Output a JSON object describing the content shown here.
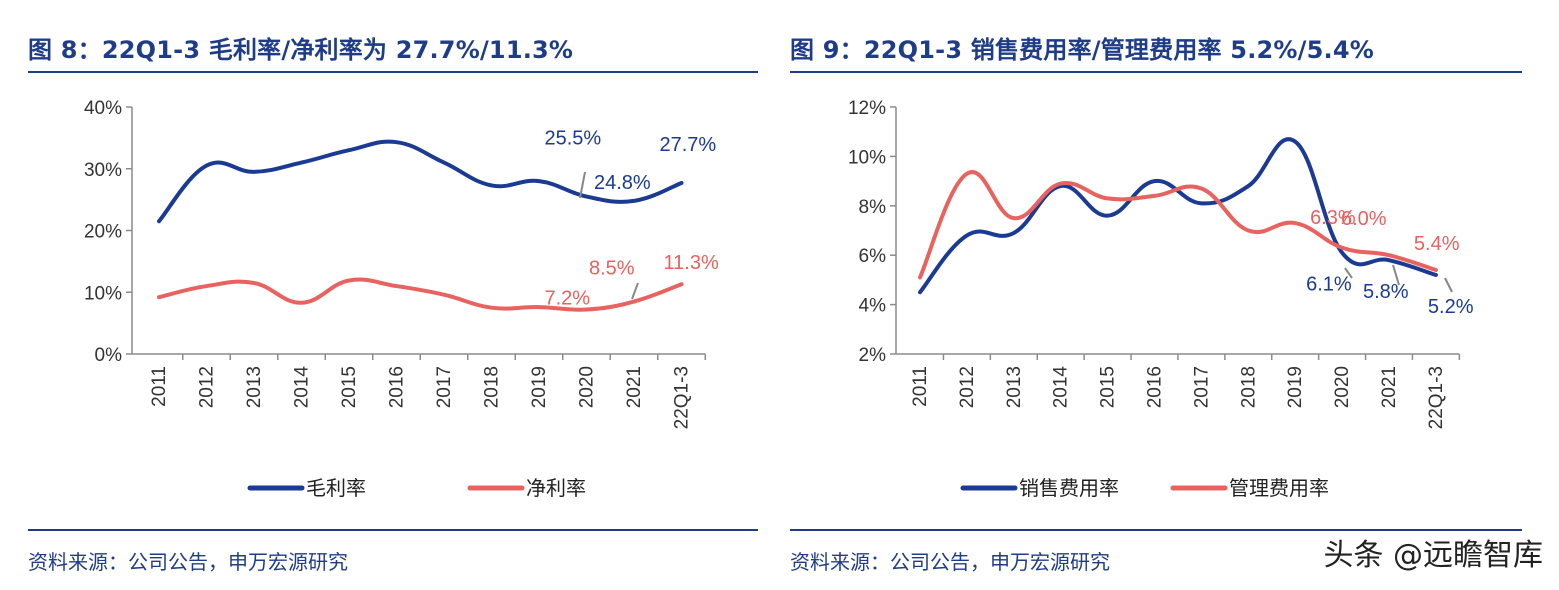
{
  "colors": {
    "navy": "#1b3a93",
    "salmon": "#e8625f",
    "axis": "#8c8c8c",
    "leader": "#888888"
  },
  "watermark": "头条 @远瞻智库",
  "panels": [
    {
      "id": "left",
      "title": "图 8：22Q1-3 毛利率/净利率为 27.7%/11.3%",
      "source": "资料来源：公司公告，申万宏源研究"
    },
    {
      "id": "right",
      "title": "图 9：22Q1-3 销售费用率/管理费用率 5.2%/5.4%",
      "source": "资料来源：公司公告，申万宏源研究"
    }
  ],
  "chart_data": [
    {
      "type": "line",
      "title": "",
      "categories": [
        "2011",
        "2012",
        "2013",
        "2014",
        "2015",
        "2016",
        "2017",
        "2018",
        "2019",
        "2020",
        "2021",
        "22Q1-3"
      ],
      "ylim": [
        0,
        40
      ],
      "yticks": [
        0,
        10,
        20,
        30,
        40
      ],
      "ytick_labels": [
        "0%",
        "10%",
        "20%",
        "30%",
        "40%"
      ],
      "y_unit": "%",
      "grid": false,
      "legend_position": "bottom",
      "series": [
        {
          "name": "毛利率",
          "color": "#1b3a93",
          "values": [
            21.5,
            30.5,
            29.5,
            31.0,
            33.0,
            34.3,
            31.0,
            27.3,
            28.0,
            25.5,
            24.8,
            27.7
          ]
        },
        {
          "name": "净利率",
          "color": "#e8625f",
          "values": [
            9.2,
            11.0,
            11.5,
            8.3,
            11.9,
            11.0,
            9.6,
            7.5,
            7.6,
            7.2,
            8.5,
            11.3
          ]
        }
      ],
      "annotations": [
        {
          "text": "25.5%",
          "series": 0,
          "index": 9
        },
        {
          "text": "24.8%",
          "series": 0,
          "index": 10
        },
        {
          "text": "27.7%",
          "series": 0,
          "index": 11
        },
        {
          "text": "7.2%",
          "series": 1,
          "index": 9
        },
        {
          "text": "8.5%",
          "series": 1,
          "index": 10
        },
        {
          "text": "11.3%",
          "series": 1,
          "index": 11
        }
      ]
    },
    {
      "type": "line",
      "title": "",
      "categories": [
        "2011",
        "2012",
        "2013",
        "2014",
        "2015",
        "2016",
        "2017",
        "2018",
        "2019",
        "2020",
        "2021",
        "22Q1-3"
      ],
      "ylim": [
        2,
        12
      ],
      "yticks": [
        2,
        4,
        6,
        8,
        10,
        12
      ],
      "ytick_labels": [
        "2%",
        "4%",
        "6%",
        "8%",
        "10%",
        "12%"
      ],
      "y_unit": "%",
      "grid": false,
      "legend_position": "bottom",
      "series": [
        {
          "name": "销售费用率",
          "color": "#1b3a93",
          "values": [
            4.5,
            6.8,
            6.9,
            8.8,
            7.6,
            9.0,
            8.1,
            8.8,
            10.6,
            6.1,
            5.8,
            5.2
          ]
        },
        {
          "name": "管理费用率",
          "color": "#e8625f",
          "values": [
            5.1,
            9.3,
            7.5,
            8.9,
            8.3,
            8.4,
            8.7,
            7.0,
            7.3,
            6.3,
            6.0,
            5.4
          ]
        }
      ],
      "annotations": [
        {
          "text": "6.3%",
          "series": 1,
          "index": 9
        },
        {
          "text": "6.0%",
          "series": 1,
          "index": 10
        },
        {
          "text": "5.4%",
          "series": 1,
          "index": 11
        },
        {
          "text": "6.1%",
          "series": 0,
          "index": 9
        },
        {
          "text": "5.8%",
          "series": 0,
          "index": 10
        },
        {
          "text": "5.2%",
          "series": 0,
          "index": 11
        }
      ]
    }
  ]
}
